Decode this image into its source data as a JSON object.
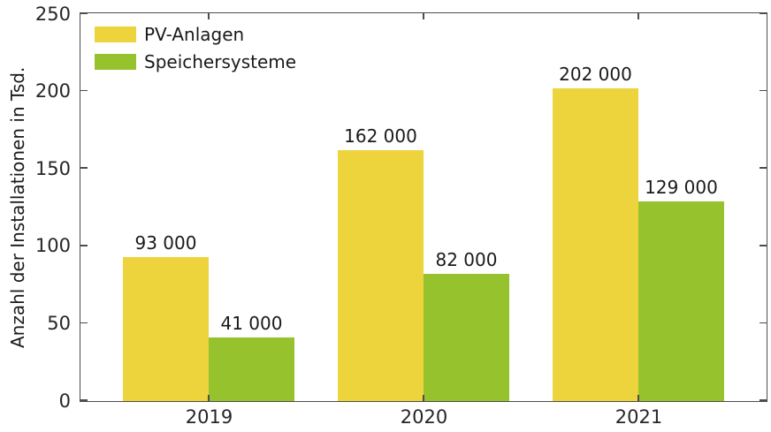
{
  "chart_data": {
    "type": "bar",
    "title": "",
    "categories": [
      "2019",
      "2020",
      "2021"
    ],
    "series": [
      {
        "name": "PV-Anlagen",
        "color": "#edd33c",
        "values": [
          93,
          162,
          202
        ],
        "value_labels": [
          "93 000",
          "162 000",
          "202 000"
        ]
      },
      {
        "name": "Speichersysteme",
        "color": "#96c22d",
        "values": [
          41,
          82,
          129
        ],
        "value_labels": [
          "41 000",
          "82 000",
          "129 000"
        ]
      }
    ],
    "xlabel": "",
    "ylabel": "Anzahl der Installationen in Tsd.",
    "ylim": [
      0,
      250
    ],
    "yticks": [
      "0",
      "50",
      "100",
      "150",
      "200",
      "250"
    ],
    "grid": false,
    "legend_position": "top-left",
    "frame": "box",
    "axis_color": "#4d4d4d",
    "text_color": "#1a1a1a"
  }
}
